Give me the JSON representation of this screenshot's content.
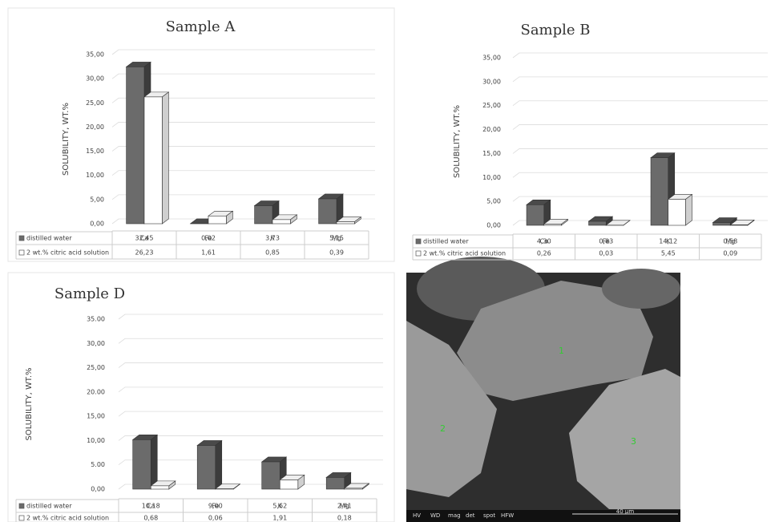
{
  "chart_data": [
    {
      "type": "bar",
      "title": "Sample A",
      "y_label": "SOLUBILITY, WT.%",
      "categories": [
        "Ca",
        "Fe",
        "K",
        "Mg"
      ],
      "series": [
        {
          "name": "distilled water",
          "color": "#6b6b6b",
          "values": [
            32.45,
            0.02,
            3.73,
            5.15
          ],
          "value_labels": [
            "32,45",
            "0,02",
            "3,73",
            "5,15"
          ]
        },
        {
          "name": "2 wt.% citric acid solution",
          "color": "#ffffff",
          "values": [
            26.23,
            1.61,
            0.85,
            0.39
          ],
          "value_labels": [
            "26,23",
            "1,61",
            "0,85",
            "0,39"
          ]
        }
      ],
      "ylim": [
        0,
        35
      ],
      "yticks": [
        {
          "value": 0,
          "label": "0,00"
        },
        {
          "value": 5,
          "label": "5,00"
        },
        {
          "value": 10,
          "label": "10,00"
        },
        {
          "value": 15,
          "label": "15,00"
        },
        {
          "value": 20,
          "label": "20,00"
        },
        {
          "value": 25,
          "label": "25,00"
        },
        {
          "value": 30,
          "label": "30,00"
        },
        {
          "value": 35,
          "label": "35,00"
        }
      ],
      "grid": true
    },
    {
      "type": "bar",
      "title": "Sample B",
      "y_label": "SOLUBILITY, WT.%",
      "categories": [
        "Ca",
        "Fe",
        "K",
        "Mg"
      ],
      "series": [
        {
          "name": "distilled water",
          "color": "#6b6b6b",
          "values": [
            4.3,
            0.83,
            14.12,
            0.58
          ],
          "value_labels": [
            "4,30",
            "0,83",
            "14,12",
            "0,58"
          ]
        },
        {
          "name": "2 wt.% citric acid solution",
          "color": "#ffffff",
          "values": [
            0.26,
            0.03,
            5.45,
            0.09
          ],
          "value_labels": [
            "0,26",
            "0,03",
            "5,45",
            "0,09"
          ]
        }
      ],
      "ylim": [
        0,
        35
      ],
      "yticks": [
        {
          "value": 0,
          "label": "0,00"
        },
        {
          "value": 5,
          "label": "5,00"
        },
        {
          "value": 10,
          "label": "10,00"
        },
        {
          "value": 15,
          "label": "15,00"
        },
        {
          "value": 20,
          "label": "20,00"
        },
        {
          "value": 25,
          "label": "25,00"
        },
        {
          "value": 30,
          "label": "30,00"
        },
        {
          "value": 35,
          "label": "35,00"
        }
      ],
      "grid": true
    },
    {
      "type": "bar",
      "title": "Sample D",
      "y_label": "SOLUBILITY, WT.%",
      "categories": [
        "Ca",
        "Fe",
        "K",
        "Mg"
      ],
      "series": [
        {
          "name": "distilled water",
          "color": "#6b6b6b",
          "values": [
            10.18,
            9.0,
            5.62,
            2.41
          ],
          "value_labels": [
            "10,18",
            "9,00",
            "5,62",
            "2,41"
          ]
        },
        {
          "name": "2 wt.% citric acid solution",
          "color": "#ffffff",
          "values": [
            0.68,
            0.06,
            1.91,
            0.18
          ],
          "value_labels": [
            "0,68",
            "0,06",
            "1,91",
            "0,18"
          ]
        }
      ],
      "ylim": [
        0,
        35
      ],
      "yticks": [
        {
          "value": 0,
          "label": "0,00"
        },
        {
          "value": 5,
          "label": "5.00"
        },
        {
          "value": 10,
          "label": "10,00"
        },
        {
          "value": 15,
          "label": "15,00"
        },
        {
          "value": 20,
          "label": "20.00"
        },
        {
          "value": 25,
          "label": "25,00"
        },
        {
          "value": 30,
          "label": "30,00"
        },
        {
          "value": 35,
          "label": "35.00"
        }
      ],
      "grid": true
    }
  ],
  "sem_image": {
    "point_labels": [
      "1",
      "2",
      "3"
    ],
    "scale_bar": "40 μm",
    "info_headers": [
      "HV",
      "WD",
      "mag",
      "det",
      "spot",
      "HFW"
    ]
  }
}
